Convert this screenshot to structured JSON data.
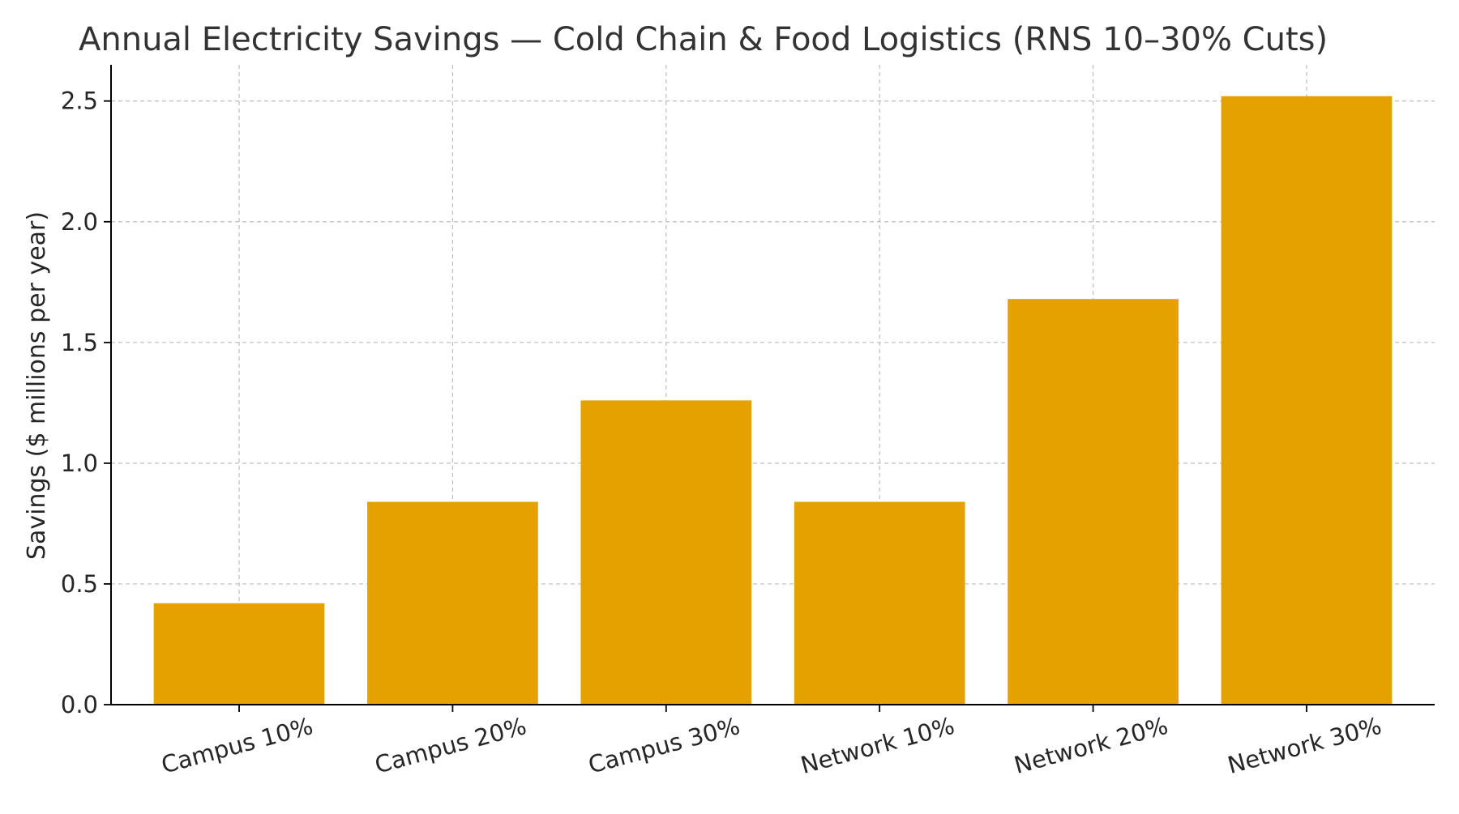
{
  "chart_data": {
    "type": "bar",
    "title": "Annual Electricity Savings — Cold Chain & Food Logistics (RNS 10–30% Cuts)",
    "xlabel": "",
    "ylabel": "Savings ($ millions per year)",
    "categories": [
      "Campus 10%",
      "Campus 20%",
      "Campus 30%",
      "Network 10%",
      "Network 20%",
      "Network 30%"
    ],
    "values": [
      0.42,
      0.84,
      1.26,
      0.84,
      1.68,
      2.52
    ],
    "ylim": [
      0,
      2.65
    ],
    "yticks": [
      0.0,
      0.5,
      1.0,
      1.5,
      2.0,
      2.5
    ],
    "ytick_labels": [
      "0.0",
      "0.5",
      "1.0",
      "1.5",
      "2.0",
      "2.5"
    ],
    "grid": true,
    "bar_color": "#E5A100",
    "legend": "none"
  }
}
